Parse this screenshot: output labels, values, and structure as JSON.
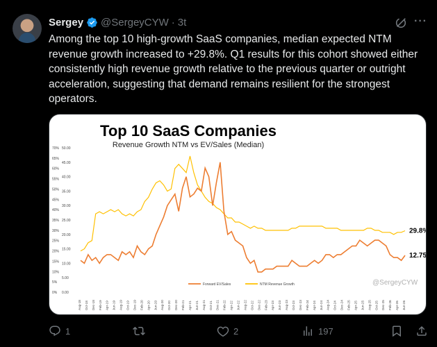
{
  "author": {
    "name": "Sergey",
    "handle": "@SergeyCYW",
    "time": "3t"
  },
  "tweet": {
    "text": "Among the top 10 high-growth SaaS companies, median expected NTM revenue growth increased to +29.8%. Q1 results for this cohort showed either consistently high revenue growth relative to the previous quarter or outright acceleration, suggesting that demand remains resilient for the strongest operators."
  },
  "chart_data": {
    "type": "line",
    "title": "Top 10 SaaS Companies",
    "subtitle": "Revenue Growth NTM vs EV/Sales (Median)",
    "x_ticks": [
      "Aug-18",
      "Oct-18",
      "Dec-18",
      "Feb-19",
      "Apr-19",
      "Jun-19",
      "Aug-19",
      "Oct-19",
      "Dec-19",
      "Feb-20",
      "Apr-20",
      "Jun-20",
      "Aug-20",
      "Oct-20",
      "Dec-20",
      "Feb-21",
      "Apr-21",
      "Jun-21",
      "Aug-21",
      "Oct-21",
      "Dec-21",
      "Feb-22",
      "Apr-22",
      "Jun-22",
      "Aug-22",
      "Oct-22",
      "Dec-22",
      "Feb-23",
      "Apr-23",
      "Jun-23",
      "Aug-23",
      "Oct-23",
      "Dec-23",
      "Feb-24",
      "Apr-24",
      "Jun-24",
      "Aug-24",
      "Oct-24",
      "Dec-24",
      "Feb-25",
      "Apr-25",
      "Jun-25",
      "Aug-25",
      "Oct-25",
      "Dec-25",
      "Feb-26",
      "Apr-26",
      "Jun-26"
    ],
    "y_left_ticks": [
      "0%",
      "5%",
      "10%",
      "15%",
      "20%",
      "25%",
      "30%",
      "35%",
      "40%",
      "45%",
      "50%",
      "55%",
      "60%",
      "65%",
      "70%"
    ],
    "y_left_range": [
      0,
      70
    ],
    "y_right_ticks": [
      "0.00",
      "5.00",
      "10.00",
      "15.00",
      "20.00",
      "25.00",
      "30.00",
      "35.00",
      "40.00",
      "45.00",
      "50.00"
    ],
    "y_right_range": [
      0,
      50
    ],
    "series": [
      {
        "name": "Forward EV/Sales",
        "axis": "right",
        "color": "#ed7d31",
        "values": [
          11,
          10,
          13,
          11,
          12,
          10,
          12,
          13,
          13,
          12,
          11,
          14,
          13,
          14,
          12,
          16,
          14,
          13,
          15,
          16,
          20,
          23,
          26,
          30,
          32,
          34,
          28,
          36,
          40,
          33,
          34,
          36,
          35,
          43,
          40,
          30,
          38,
          45,
          28,
          20,
          21,
          18,
          17,
          16,
          12,
          10,
          11,
          7,
          7,
          8,
          8,
          8,
          9,
          9,
          9,
          9,
          11,
          10,
          9,
          9,
          9,
          10,
          11,
          10,
          11,
          13,
          13,
          12,
          13,
          13,
          14,
          15,
          16,
          16,
          18,
          17,
          16,
          17,
          18,
          18,
          17,
          16,
          13,
          12,
          12,
          11,
          12.75
        ]
      },
      {
        "name": "NTM Revenue Growth",
        "axis": "left",
        "color": "#ffc000",
        "values": [
          20,
          21,
          24,
          25,
          38,
          39,
          38,
          39,
          40,
          39,
          40,
          38,
          37,
          38,
          37,
          39,
          40,
          44,
          46,
          50,
          53,
          54,
          52,
          49,
          50,
          60,
          62,
          60,
          58,
          66,
          58,
          52,
          49,
          46,
          44,
          43,
          41,
          40,
          38,
          36,
          36,
          34,
          34,
          33,
          32,
          31,
          32,
          31,
          31,
          30,
          30,
          30,
          30,
          30,
          30,
          30,
          31,
          31,
          32,
          32,
          32,
          32,
          32,
          32,
          32,
          31,
          31,
          31,
          31,
          30,
          30,
          30,
          30,
          30,
          30,
          30,
          31,
          31,
          30,
          30,
          29,
          29,
          29,
          28,
          29,
          29,
          29.8
        ]
      }
    ],
    "end_labels": {
      "growth": "29.8%",
      "ev_sales": "12.75"
    },
    "watermark": "@SergeyCYW",
    "grid": false,
    "legend_position": "bottom"
  },
  "actions": {
    "replies": "1",
    "reposts": "",
    "likes": "2",
    "views": "197"
  },
  "colors": {
    "accent": "#1d9bf0",
    "muted": "#71767b",
    "orange": "#ed7d31",
    "gold": "#ffc000"
  }
}
